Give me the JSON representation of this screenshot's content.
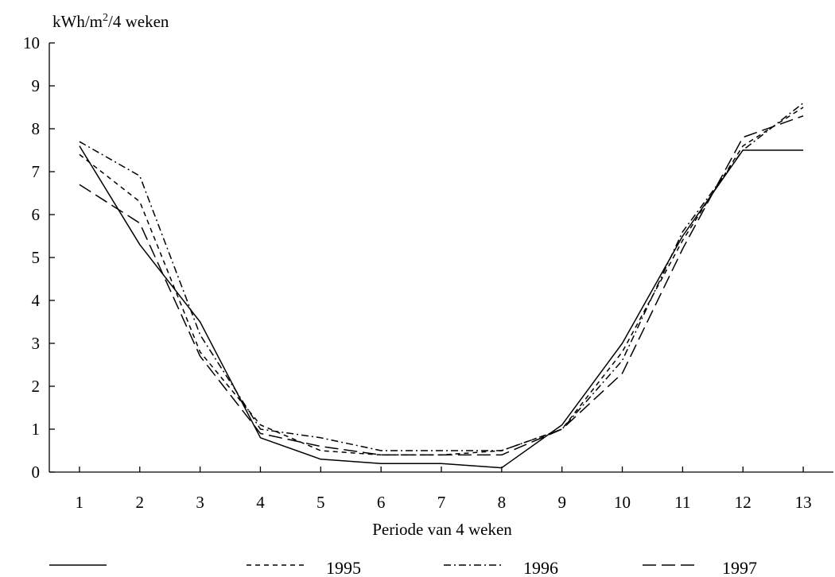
{
  "chart_data": {
    "type": "line",
    "ylabel": "kWh/m²/4 weken",
    "xlabel": "Periode van 4 weken",
    "x": [
      1,
      2,
      3,
      4,
      5,
      6,
      7,
      8,
      9,
      10,
      11,
      12,
      13
    ],
    "xlim": [
      0.5,
      13.5
    ],
    "ylim": [
      0,
      10
    ],
    "yticks": [
      0,
      1,
      2,
      3,
      4,
      5,
      6,
      7,
      8,
      9,
      10
    ],
    "grid": false,
    "legend_position": "bottom",
    "series": [
      {
        "name": "",
        "style": "solid",
        "values": [
          7.6,
          5.3,
          3.5,
          0.8,
          0.3,
          0.2,
          0.2,
          0.1,
          1.1,
          3.0,
          5.5,
          7.5,
          7.5
        ]
      },
      {
        "name": "1995",
        "style": "dashed",
        "values": [
          7.4,
          6.3,
          2.8,
          1.1,
          0.5,
          0.4,
          0.4,
          0.5,
          1.0,
          2.8,
          5.4,
          7.6,
          8.5
        ]
      },
      {
        "name": "1996",
        "style": "dashdot",
        "values": [
          7.7,
          6.9,
          3.2,
          1.0,
          0.8,
          0.5,
          0.5,
          0.5,
          1.0,
          2.6,
          5.6,
          7.5,
          8.6
        ]
      },
      {
        "name": "1997",
        "style": "longdash",
        "values": [
          6.7,
          5.8,
          2.7,
          0.9,
          0.6,
          0.4,
          0.4,
          0.4,
          1.0,
          2.3,
          5.2,
          7.8,
          8.3
        ]
      }
    ]
  }
}
